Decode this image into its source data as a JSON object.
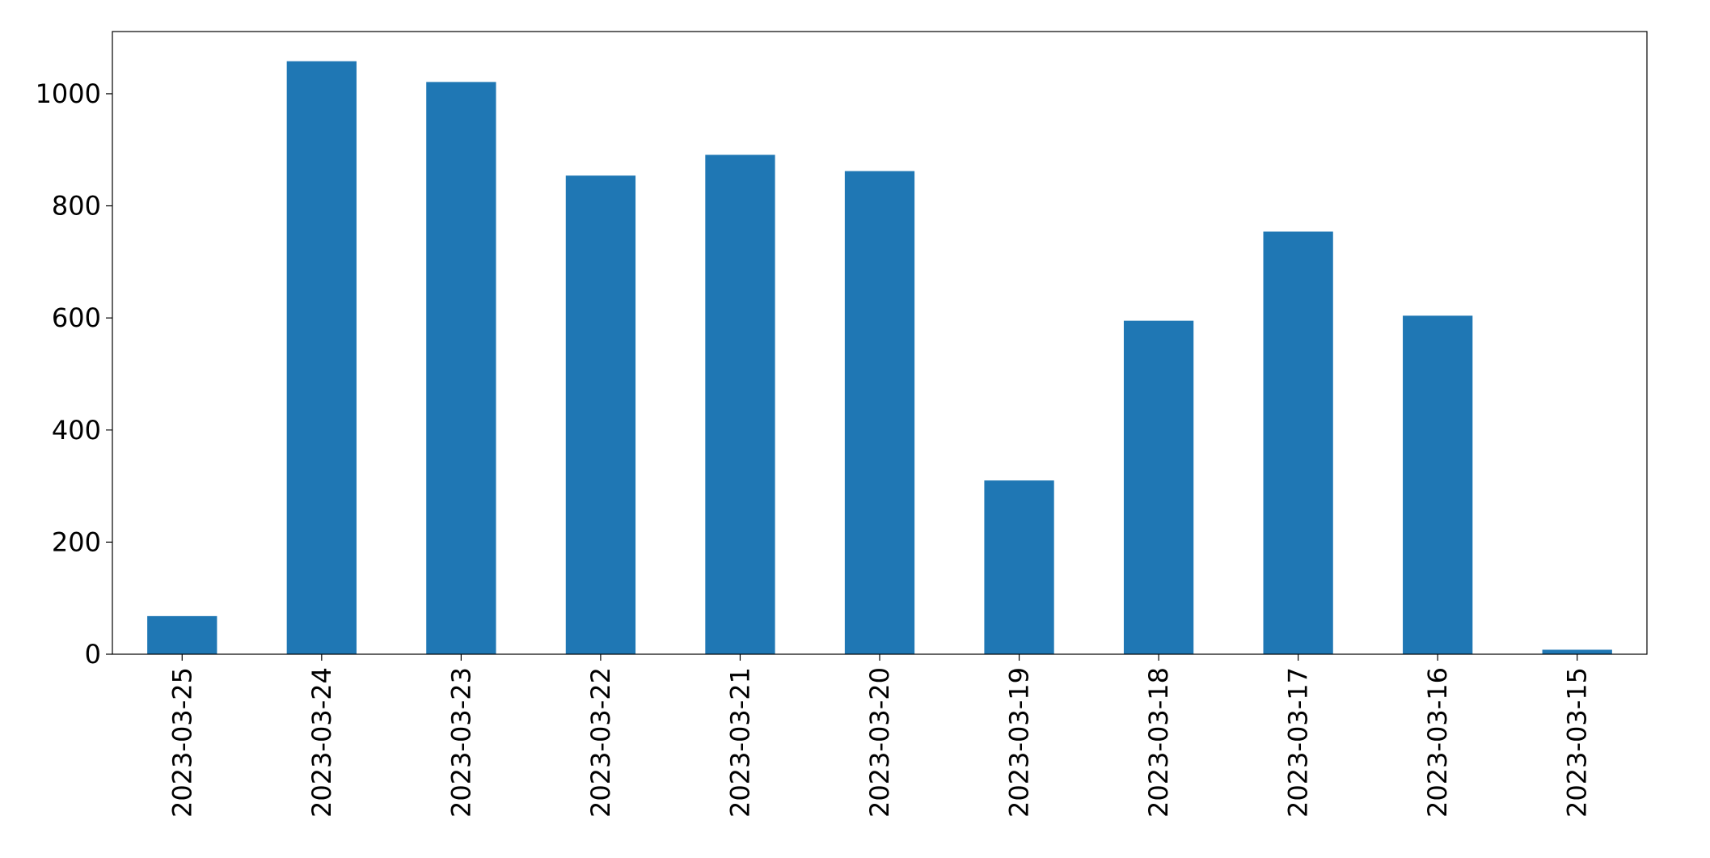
{
  "chart_data": {
    "type": "bar",
    "categories": [
      "2023-03-25",
      "2023-03-24",
      "2023-03-23",
      "2023-03-22",
      "2023-03-21",
      "2023-03-20",
      "2023-03-19",
      "2023-03-18",
      "2023-03-17",
      "2023-03-16",
      "2023-03-15"
    ],
    "values": [
      68,
      1058,
      1021,
      854,
      891,
      862,
      310,
      595,
      754,
      604,
      8
    ],
    "color": "#1f77b4",
    "ylim": [
      0,
      1111
    ],
    "yticks": [
      0,
      200,
      400,
      600,
      800,
      1000
    ],
    "grid": false
  }
}
